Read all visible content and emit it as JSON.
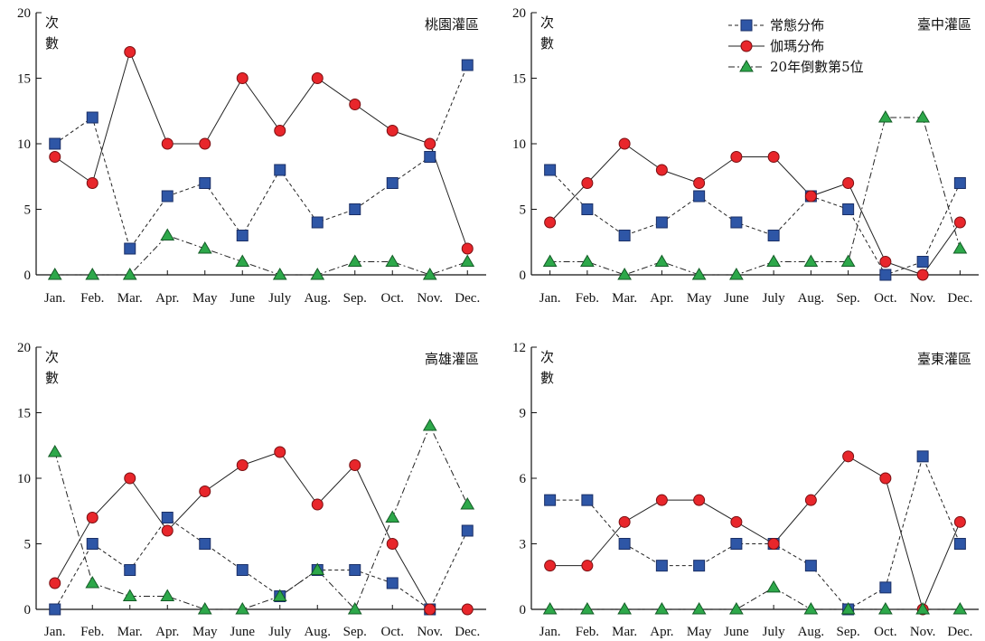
{
  "chart_data": [
    {
      "type": "line",
      "title": "桃園灌區",
      "ylabel": "次數",
      "categories": [
        "Jan.",
        "Feb.",
        "Mar.",
        "Apr.",
        "May",
        "June",
        "July",
        "Aug.",
        "Sep.",
        "Oct.",
        "Nov.",
        "Dec."
      ],
      "ylim": [
        0,
        20
      ],
      "yticks": [
        0,
        5,
        10,
        15,
        20
      ],
      "series": [
        {
          "name": "常態分佈",
          "values": [
            10,
            12,
            2,
            6,
            7,
            3,
            8,
            4,
            5,
            7,
            9,
            16
          ]
        },
        {
          "name": "伽瑪分佈",
          "values": [
            9,
            7,
            17,
            10,
            10,
            15,
            11,
            15,
            13,
            11,
            10,
            2
          ]
        },
        {
          "name": "20年倒數第5位",
          "values": [
            0,
            0,
            0,
            3,
            2,
            1,
            0,
            0,
            1,
            1,
            0,
            1
          ]
        }
      ]
    },
    {
      "type": "line",
      "title": "臺中灌區",
      "ylabel": "次數",
      "categories": [
        "Jan.",
        "Feb.",
        "Mar.",
        "Apr.",
        "May",
        "June",
        "July",
        "Aug.",
        "Sep.",
        "Oct.",
        "Nov.",
        "Dec."
      ],
      "ylim": [
        0,
        20
      ],
      "yticks": [
        0,
        5,
        10,
        15,
        20
      ],
      "legend": "top-center",
      "series": [
        {
          "name": "常態分佈",
          "values": [
            8,
            5,
            3,
            4,
            6,
            4,
            3,
            6,
            5,
            0,
            1,
            7
          ]
        },
        {
          "name": "伽瑪分佈",
          "values": [
            4,
            7,
            10,
            8,
            7,
            9,
            9,
            6,
            7,
            1,
            0,
            4
          ]
        },
        {
          "name": "20年倒數第5位",
          "values": [
            1,
            1,
            0,
            1,
            0,
            0,
            1,
            1,
            1,
            12,
            12,
            2
          ]
        }
      ]
    },
    {
      "type": "line",
      "title": "高雄灌區",
      "ylabel": "次數",
      "categories": [
        "Jan.",
        "Feb.",
        "Mar.",
        "Apr.",
        "May",
        "June",
        "July",
        "Aug.",
        "Sep.",
        "Oct.",
        "Nov.",
        "Dec."
      ],
      "ylim": [
        0,
        20
      ],
      "yticks": [
        0,
        5,
        10,
        15,
        20
      ],
      "series": [
        {
          "name": "常態分佈",
          "values": [
            0,
            5,
            3,
            7,
            5,
            3,
            1,
            3,
            3,
            2,
            0,
            6
          ]
        },
        {
          "name": "伽瑪分佈",
          "values": [
            2,
            7,
            10,
            6,
            9,
            11,
            12,
            8,
            11,
            5,
            0,
            0
          ]
        },
        {
          "name": "20年倒數第5位",
          "values": [
            12,
            2,
            1,
            1,
            0,
            0,
            1,
            3,
            0,
            7,
            14,
            8
          ]
        }
      ]
    },
    {
      "type": "line",
      "title": "臺東灌區",
      "ylabel": "次數",
      "categories": [
        "Jan.",
        "Feb.",
        "Mar.",
        "Apr.",
        "May",
        "June",
        "July",
        "Aug.",
        "Sep.",
        "Oct.",
        "Nov.",
        "Dec."
      ],
      "ylim": [
        0,
        12
      ],
      "yticks": [
        0,
        3,
        6,
        9,
        12
      ],
      "series": [
        {
          "name": "常態分佈",
          "values": [
            5,
            5,
            3,
            2,
            2,
            3,
            3,
            2,
            0,
            1,
            7,
            3
          ]
        },
        {
          "name": "伽瑪分佈",
          "values": [
            2,
            2,
            4,
            5,
            5,
            4,
            3,
            5,
            7,
            6,
            0,
            4
          ]
        },
        {
          "name": "20年倒數第5位",
          "values": [
            0,
            0,
            0,
            0,
            0,
            0,
            1,
            0,
            0,
            0,
            0,
            0
          ]
        }
      ]
    }
  ],
  "styles": {
    "normal": {
      "line_color": "#222222",
      "dash": "dashed",
      "marker": "square",
      "marker_fill": "#2e56a6",
      "marker_stroke": "#1a2f66"
    },
    "gamma": {
      "line_color": "#222222",
      "dash": "solid",
      "marker": "circle",
      "marker_fill": "#e8262b",
      "marker_stroke": "#7a0f12"
    },
    "rank5": {
      "line_color": "#222222",
      "dash": "dashdot",
      "marker": "triangle",
      "marker_fill": "#2da84a",
      "marker_stroke": "#145c27"
    }
  }
}
